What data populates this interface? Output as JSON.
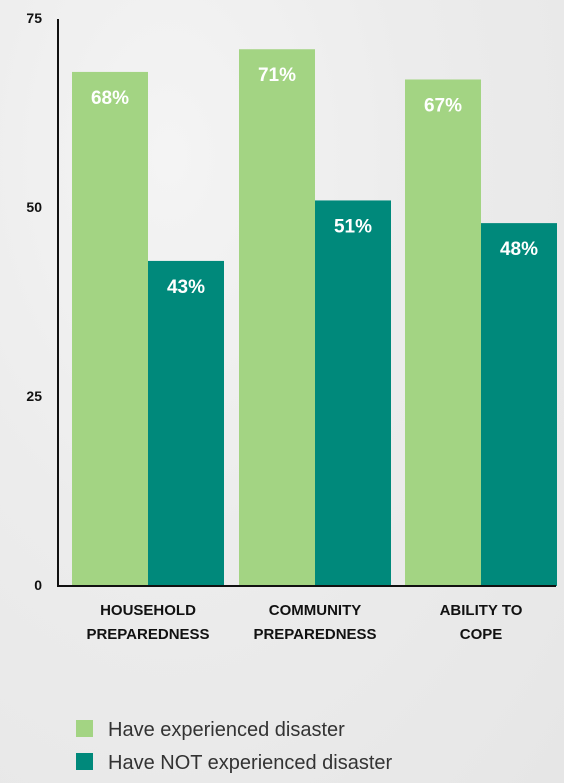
{
  "chart_data": {
    "type": "bar",
    "categories": [
      [
        "HOUSEHOLD",
        "PREPAREDNESS"
      ],
      [
        "COMMUNITY",
        "PREPAREDNESS"
      ],
      [
        "ABILITY TO",
        "COPE"
      ]
    ],
    "series": [
      {
        "name": "Have experienced disaster",
        "color": "#a3d483",
        "values": [
          68,
          71,
          67
        ],
        "labels": [
          "68%",
          "71%",
          "67%"
        ]
      },
      {
        "name": "Have NOT experienced disaster",
        "color": "#00897b",
        "values": [
          43,
          51,
          48
        ],
        "labels": [
          "43%",
          "51%",
          "48%"
        ]
      }
    ],
    "y_ticks": [
      0,
      25,
      50,
      75
    ],
    "ylim": [
      0,
      75
    ],
    "grid": false,
    "legend_position": "bottom"
  }
}
